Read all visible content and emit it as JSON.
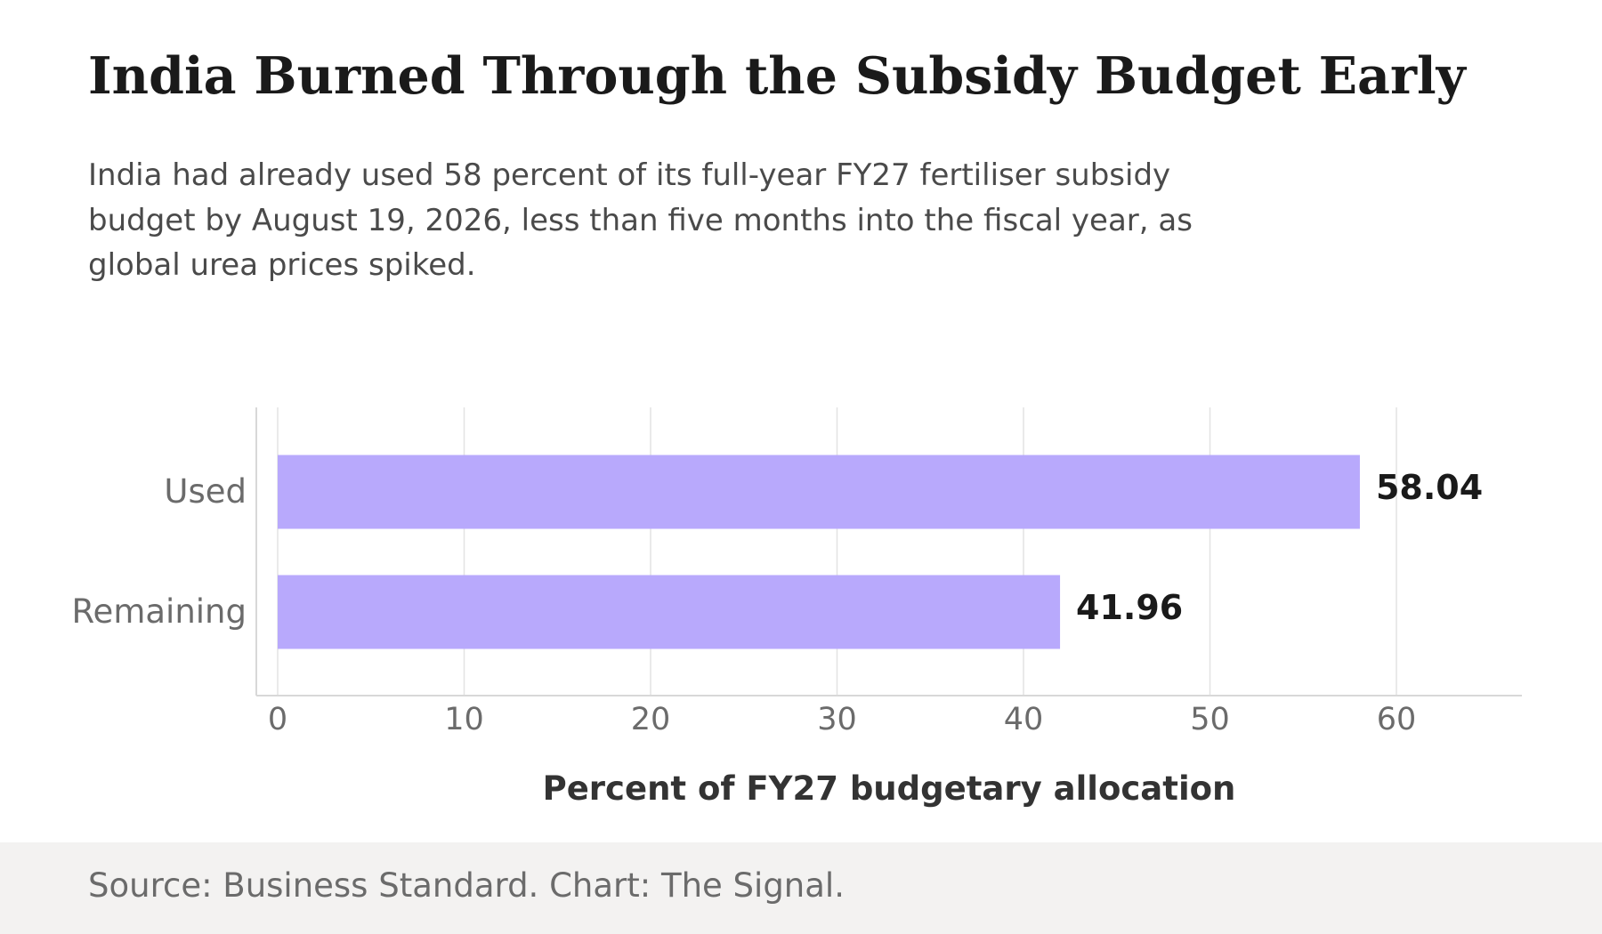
{
  "title": "India Burned Through the Subsidy Budget Early",
  "subtitle": "India had already used 58 percent of its full-year FY27 fertiliser subsidy budget by August 19, 2026, less than five months into the fiscal year, as global urea prices spiked.",
  "footer": {
    "source": "Source: Business Standard. Chart: The Signal."
  },
  "chart_data": {
    "type": "bar",
    "orientation": "horizontal",
    "categories": [
      "Used",
      "Remaining"
    ],
    "values": [
      58.04,
      41.96
    ],
    "value_labels": [
      "58.04",
      "41.96"
    ],
    "xlabel": "Percent of FY27 budgetary allocation",
    "ylabel": "",
    "xlim": [
      -1.2,
      66.5
    ],
    "xticks": [
      0,
      10,
      20,
      30,
      40,
      50,
      60
    ],
    "grid": true,
    "legend": "none",
    "colors": {
      "bar": "#b8a9fc",
      "grid": "#e3e3e3",
      "axis": "#d8d8d8",
      "tick_label": "#6b6b6b",
      "category_label": "#6b6b6b",
      "value_label": "#1a1a1a",
      "axis_title": "#333333"
    }
  }
}
